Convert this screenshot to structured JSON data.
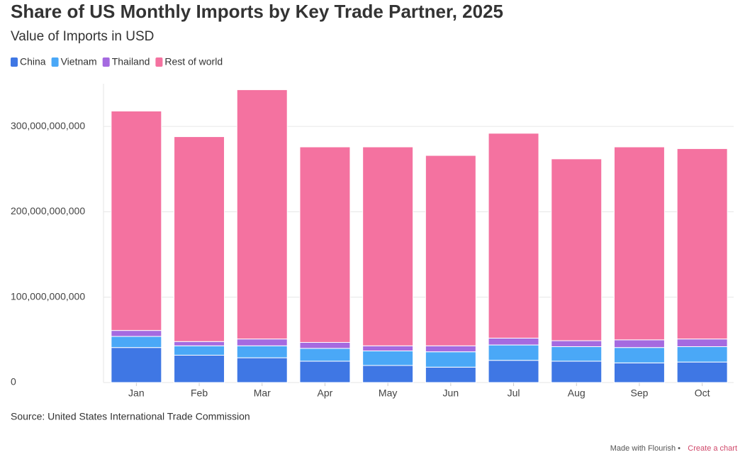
{
  "chart_data": {
    "type": "stacked-bar",
    "title": "Share of US Monthly Imports by Key Trade Partner, 2025",
    "subtitle": "Value of Imports in USD",
    "categories": [
      "Jan",
      "Feb",
      "Mar",
      "Apr",
      "May",
      "Jun",
      "Jul",
      "Aug",
      "Sep",
      "Oct"
    ],
    "series": [
      {
        "name": "China",
        "color": "#3f77e4",
        "values": [
          41000000000,
          32000000000,
          29000000000,
          25000000000,
          20000000000,
          18000000000,
          26000000000,
          25000000000,
          23000000000,
          24000000000
        ]
      },
      {
        "name": "Vietnam",
        "color": "#4aa8f7",
        "values": [
          13000000000,
          11000000000,
          14000000000,
          15000000000,
          17000000000,
          18000000000,
          18000000000,
          17000000000,
          18000000000,
          18000000000
        ]
      },
      {
        "name": "Thailand",
        "color": "#a56ae0",
        "values": [
          7000000000,
          5000000000,
          8000000000,
          7000000000,
          6000000000,
          7000000000,
          8000000000,
          7000000000,
          9000000000,
          9000000000
        ]
      },
      {
        "name": "Rest of world",
        "color": "#f472a0",
        "values": [
          257000000000,
          240000000000,
          292000000000,
          229000000000,
          233000000000,
          223000000000,
          240000000000,
          213000000000,
          226000000000,
          223000000000
        ]
      }
    ],
    "ylim": [
      0,
      350000000000
    ],
    "yticks": [
      0,
      {
        "value": 100000000000,
        "label": "100,000,000,000"
      },
      {
        "value": 200000000000,
        "label": "200,000,000,000"
      },
      {
        "value": 300000000000,
        "label": "300,000,000,000"
      }
    ],
    "grid": true,
    "source": "Source: United States International Trade Commission",
    "credit": "Made with Flourish •",
    "credit_link": "Create a chart"
  }
}
